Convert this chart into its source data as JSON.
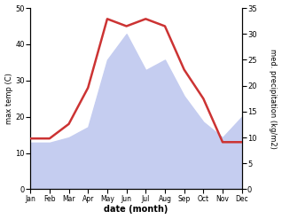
{
  "months": [
    "Jan",
    "Feb",
    "Mar",
    "Apr",
    "May",
    "Jun",
    "Jul",
    "Aug",
    "Sep",
    "Oct",
    "Nov",
    "Dec"
  ],
  "temperature": [
    14,
    14,
    18,
    28,
    47,
    45,
    47,
    45,
    33,
    25,
    13,
    13
  ],
  "precipitation": [
    9,
    9,
    10,
    12,
    25,
    30,
    23,
    25,
    18,
    13,
    10,
    14
  ],
  "temp_color": "#cc3333",
  "precip_fill_color": "#c5cdf0",
  "temp_ylim": [
    0,
    50
  ],
  "precip_ylim": [
    0,
    35
  ],
  "ylabel_left": "max temp (C)",
  "ylabel_right": "med. precipitation (kg/m2)",
  "xlabel": "date (month)",
  "bg_color": "#ffffff",
  "temp_linewidth": 1.8,
  "left_ticks": [
    0,
    10,
    20,
    30,
    40,
    50
  ],
  "right_ticks": [
    0,
    5,
    10,
    15,
    20,
    25,
    30,
    35
  ]
}
